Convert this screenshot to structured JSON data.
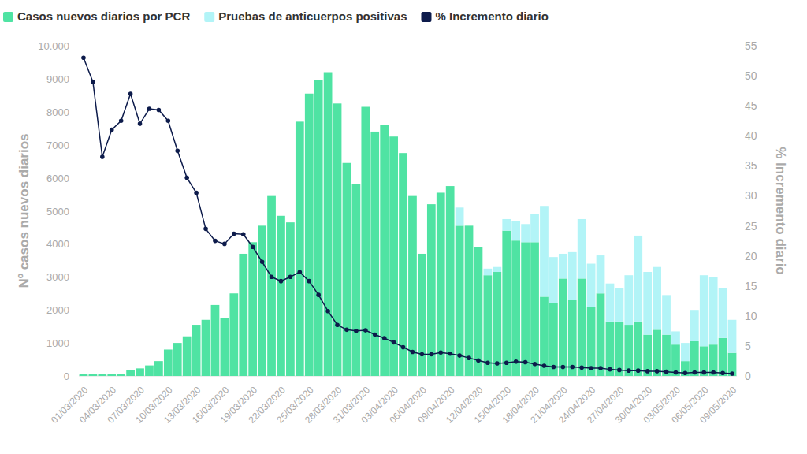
{
  "chart_data": {
    "type": "bar",
    "stacked": true,
    "grid": false,
    "legend": "top-left",
    "y_label": "Nº casos nuevos diarios",
    "y2_label": "% Incremento diario",
    "categories": [
      "01/03/2020",
      null,
      null,
      "04/03/2020",
      null,
      null,
      "07/03/2020",
      null,
      null,
      "10/03/2020",
      null,
      null,
      "13/03/2020",
      null,
      null,
      "16/03/2020",
      null,
      null,
      "19/03/2020",
      null,
      null,
      "22/03/2020",
      null,
      null,
      "25/03/2020",
      null,
      null,
      "28/03/2020",
      null,
      null,
      "31/03/2020",
      null,
      null,
      "03/04/2020",
      null,
      null,
      "06/04/2020",
      null,
      null,
      "09/04/2020",
      null,
      null,
      "12/04/2020",
      null,
      null,
      "15/04/2020",
      null,
      null,
      "18/04/2020",
      null,
      null,
      "21/04/2020",
      null,
      null,
      "24/04/2020",
      null,
      null,
      "27/04/2020",
      null,
      null,
      "30/04/2020",
      null,
      null,
      "03/05/2020",
      null,
      null,
      "06/05/2020",
      null,
      null,
      "09/05/2020"
    ],
    "ylim": [
      0,
      10000
    ],
    "yticks": [
      0,
      1000,
      2000,
      3000,
      4000,
      5000,
      6000,
      7000,
      8000,
      9000,
      {
        "value": 10000,
        "label": "10.000"
      }
    ],
    "y2lim": [
      0,
      55
    ],
    "y2ticks": [
      0,
      5,
      10,
      15,
      20,
      25,
      30,
      35,
      40,
      45,
      50,
      55
    ],
    "series": [
      {
        "name": "Casos nuevos diarios por PCR",
        "type": "bar",
        "color": "#4fe3a3",
        "values": [
          50,
          50,
          60,
          60,
          70,
          190,
          230,
          320,
          450,
          800,
          1000,
          1200,
          1550,
          1700,
          2150,
          1750,
          2500,
          3700,
          4050,
          4550,
          5450,
          4850,
          4650,
          7700,
          8550,
          8950,
          9200,
          8250,
          6450,
          5800,
          8150,
          7400,
          7600,
          7250,
          6750,
          5450,
          3700,
          5200,
          5550,
          5750,
          4550,
          4550,
          3900,
          3050,
          3150,
          4400,
          4100,
          4050,
          4050,
          2400,
          2200,
          2950,
          2300,
          2950,
          2100,
          2500,
          1650,
          1650,
          1550,
          1650,
          1250,
          1400,
          1250,
          950,
          450,
          1050,
          900,
          950,
          1150,
          700
        ]
      },
      {
        "name": "Pruebas de anticuerpos positivas",
        "type": "bar",
        "color": "#b2f4f7",
        "values": [
          0,
          0,
          0,
          0,
          0,
          0,
          0,
          0,
          0,
          0,
          0,
          0,
          0,
          0,
          0,
          0,
          0,
          0,
          0,
          0,
          0,
          0,
          0,
          0,
          0,
          0,
          0,
          0,
          0,
          0,
          0,
          0,
          0,
          0,
          0,
          0,
          0,
          0,
          0,
          0,
          550,
          0,
          0,
          200,
          150,
          350,
          600,
          550,
          850,
          2750,
          1400,
          750,
          1450,
          1800,
          1300,
          1150,
          1150,
          1000,
          1500,
          2600,
          1900,
          1900,
          1200,
          400,
          550,
          950,
          2150,
          2050,
          1500,
          1000
        ]
      },
      {
        "name": "% Incremento diario",
        "type": "line",
        "axis": "y2",
        "color": "#0d1b4b",
        "marker": "circle",
        "values": [
          53,
          49,
          36.5,
          41,
          42.5,
          47,
          42,
          44.5,
          44.3,
          42.5,
          37.5,
          33,
          30.5,
          24.5,
          22.5,
          22,
          23.7,
          23.6,
          21.5,
          19,
          16.5,
          15.8,
          16.5,
          17.3,
          15.8,
          13.5,
          10.8,
          8.5,
          7.7,
          7.5,
          7.6,
          6.9,
          6.3,
          5.6,
          4.8,
          4.0,
          3.6,
          3.6,
          3.9,
          3.7,
          3.4,
          3.0,
          2.6,
          2.2,
          2.1,
          2.2,
          2.4,
          2.3,
          2.0,
          1.7,
          1.5,
          1.5,
          1.5,
          1.4,
          1.3,
          1.3,
          1.1,
          1.0,
          0.9,
          0.9,
          0.8,
          0.8,
          0.7,
          0.6,
          0.5,
          0.6,
          0.6,
          0.6,
          0.5,
          0.4
        ]
      }
    ]
  }
}
